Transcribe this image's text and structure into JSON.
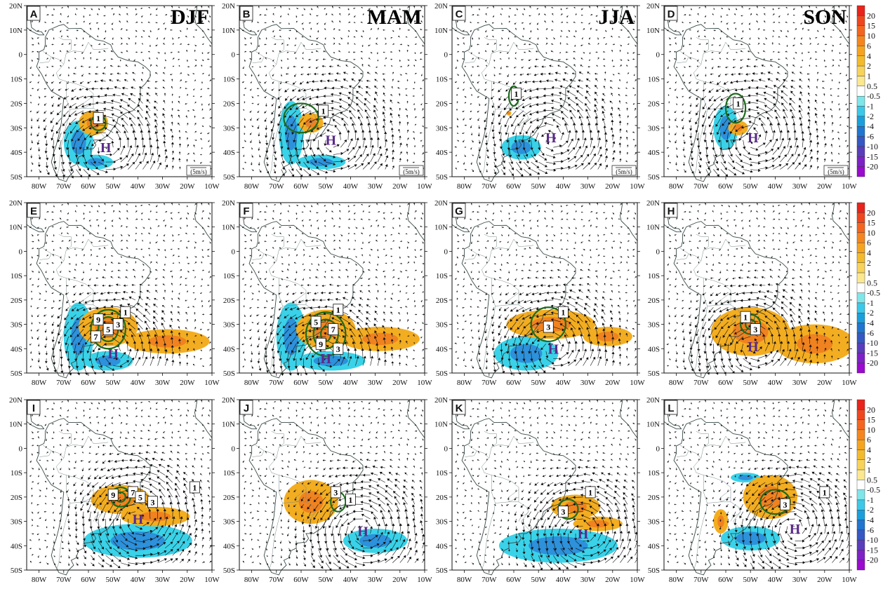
{
  "panels": [
    {
      "id": "A",
      "season": "DJF",
      "ref_vector": "(5m/s)",
      "contours": [
        {
          "text": "1",
          "lon": -56,
          "lat": -26
        }
      ],
      "highs": [
        {
          "text": "H",
          "lon": -53,
          "lat": -38
        }
      ],
      "pos_blobs": [
        {
          "lon": -58,
          "lat": -28,
          "rl": 6,
          "rt": 5
        }
      ],
      "neg_blobs": [
        {
          "lon": -64,
          "lat": -36,
          "rl": 6,
          "rt": 9
        },
        {
          "lon": -57,
          "lat": -44,
          "rl": 7,
          "rt": 3
        }
      ],
      "green": [
        {
          "lon": -56,
          "lat": -28,
          "rl": 3,
          "rt": 3
        }
      ]
    },
    {
      "id": "B",
      "season": "MAM",
      "ref_vector": "(5m/s)",
      "contours": [
        {
          "text": "1",
          "lon": -51,
          "lat": -23
        }
      ],
      "highs": [
        {
          "text": "H",
          "lon": -48,
          "lat": -35
        }
      ],
      "pos_blobs": [
        {
          "lon": -56,
          "lat": -28,
          "rl": 5,
          "rt": 4
        }
      ],
      "neg_blobs": [
        {
          "lon": -64,
          "lat": -32,
          "rl": 5,
          "rt": 13
        },
        {
          "lon": -52,
          "lat": -44,
          "rl": 10,
          "rt": 3
        }
      ],
      "green": [
        {
          "lon": -60,
          "lat": -26,
          "rl": 7,
          "rt": 6
        }
      ]
    },
    {
      "id": "C",
      "season": "JJA",
      "ref_vector": "(5m/s)",
      "contours": [
        {
          "text": "1",
          "lon": -59,
          "lat": -16
        }
      ],
      "highs": [
        {
          "text": "H",
          "lon": -45,
          "lat": -34
        }
      ],
      "pos_blobs": [
        {
          "lon": -62,
          "lat": -24,
          "rl": 1,
          "rt": 1
        }
      ],
      "neg_blobs": [
        {
          "lon": -57,
          "lat": -38,
          "rl": 8,
          "rt": 5
        }
      ],
      "green": [
        {
          "lon": -60,
          "lat": -17,
          "rl": 2,
          "rt": 4
        }
      ]
    },
    {
      "id": "D",
      "season": "SON",
      "ref_vector": "(5m/s)",
      "contours": [
        {
          "text": "1",
          "lon": -55,
          "lat": -20
        }
      ],
      "highs": [
        {
          "text": "H",
          "lon": -49,
          "lat": -34
        }
      ],
      "pos_blobs": [
        {
          "lon": -55,
          "lat": -30,
          "rl": 4,
          "rt": 3
        }
      ],
      "neg_blobs": [
        {
          "lon": -60,
          "lat": -30,
          "rl": 5,
          "rt": 9
        }
      ],
      "green": [
        {
          "lon": -56,
          "lat": -22,
          "rl": 4,
          "rt": 6
        }
      ]
    },
    {
      "id": "E",
      "season": "",
      "ref_vector": "",
      "contours": [
        {
          "text": "9",
          "lon": -56,
          "lat": -28
        },
        {
          "text": "1",
          "lon": -45,
          "lat": -25
        },
        {
          "text": "5",
          "lon": -52,
          "lat": -32
        },
        {
          "text": "3",
          "lon": -48,
          "lat": -30
        },
        {
          "text": "7",
          "lon": -57,
          "lat": -35
        }
      ],
      "highs": [
        {
          "text": "H",
          "lon": -50,
          "lat": -42
        }
      ],
      "pos_blobs": [
        {
          "lon": -52,
          "lat": -31,
          "rl": 12,
          "rt": 8
        },
        {
          "lon": -28,
          "lat": -37,
          "rl": 17,
          "rt": 5
        }
      ],
      "neg_blobs": [
        {
          "lon": -64,
          "lat": -35,
          "rl": 6,
          "rt": 14
        },
        {
          "lon": -52,
          "lat": -45,
          "rl": 10,
          "rt": 4
        }
      ],
      "green": [
        {
          "lon": -52,
          "lat": -32,
          "rl": 7,
          "rt": 8
        },
        {
          "lon": -52,
          "lat": -32,
          "rl": 4,
          "rt": 5
        },
        {
          "lon": -52,
          "lat": -32,
          "rl": 2,
          "rt": 2
        }
      ]
    },
    {
      "id": "F",
      "season": "",
      "ref_vector": "",
      "contours": [
        {
          "text": "1",
          "lon": -45,
          "lat": -24
        },
        {
          "text": "5",
          "lon": -54,
          "lat": -29
        },
        {
          "text": "7",
          "lon": -47,
          "lat": -32
        },
        {
          "text": "9",
          "lon": -52,
          "lat": -38
        },
        {
          "text": "3",
          "lon": -45,
          "lat": -40
        }
      ],
      "highs": [
        {
          "text": "H",
          "lon": -50,
          "lat": -44
        }
      ],
      "pos_blobs": [
        {
          "lon": -50,
          "lat": -32,
          "rl": 12,
          "rt": 8
        },
        {
          "lon": -28,
          "lat": -36,
          "rl": 16,
          "rt": 5
        }
      ],
      "neg_blobs": [
        {
          "lon": -64,
          "lat": -35,
          "rl": 6,
          "rt": 14
        },
        {
          "lon": -48,
          "lat": -45,
          "rl": 14,
          "rt": 4
        }
      ],
      "green": [
        {
          "lon": -50,
          "lat": -34,
          "rl": 8,
          "rt": 9
        },
        {
          "lon": -50,
          "lat": -34,
          "rl": 5,
          "rt": 6
        },
        {
          "lon": -50,
          "lat": -34,
          "rl": 2,
          "rt": 3
        }
      ]
    },
    {
      "id": "G",
      "season": "",
      "ref_vector": "",
      "contours": [
        {
          "text": "1",
          "lon": -40,
          "lat": -25
        },
        {
          "text": "3",
          "lon": -46,
          "lat": -31
        }
      ],
      "highs": [
        {
          "text": "H",
          "lon": -44,
          "lat": -40
        }
      ],
      "pos_blobs": [
        {
          "lon": -45,
          "lat": -30,
          "rl": 18,
          "rt": 6
        },
        {
          "lon": -22,
          "lat": -35,
          "rl": 10,
          "rt": 4
        }
      ],
      "neg_blobs": [
        {
          "lon": -55,
          "lat": -42,
          "rl": 13,
          "rt": 7
        }
      ],
      "green": [
        {
          "lon": -46,
          "lat": -30,
          "rl": 7,
          "rt": 7
        }
      ]
    },
    {
      "id": "H",
      "season": "",
      "ref_vector": "",
      "contours": [
        {
          "text": "1",
          "lon": -52,
          "lat": -27
        },
        {
          "text": "3",
          "lon": -48,
          "lat": -32
        }
      ],
      "highs": [
        {
          "text": "H",
          "lon": -49,
          "lat": -39
        }
      ],
      "pos_blobs": [
        {
          "lon": -50,
          "lat": -33,
          "rl": 16,
          "rt": 10
        },
        {
          "lon": -24,
          "lat": -38,
          "rl": 16,
          "rt": 8
        }
      ],
      "neg_blobs": [
        {
          "lon": -63,
          "lat": -34,
          "rl": 1,
          "rt": 2
        }
      ],
      "green": [
        {
          "lon": -50,
          "lat": -30,
          "rl": 4,
          "rt": 4
        },
        {
          "lon": -50,
          "lat": -30,
          "rl": 2,
          "rt": 2
        }
      ]
    },
    {
      "id": "I",
      "season": "",
      "ref_vector": "",
      "contours": [
        {
          "text": "9",
          "lon": -50,
          "lat": -19
        },
        {
          "text": "1",
          "lon": -17,
          "lat": -16
        },
        {
          "text": "7",
          "lon": -42,
          "lat": -18
        },
        {
          "text": "5",
          "lon": -39,
          "lat": -20
        },
        {
          "text": "3",
          "lon": -34,
          "lat": -22
        }
      ],
      "highs": [
        {
          "text": "H",
          "lon": -40,
          "lat": -29
        }
      ],
      "pos_blobs": [
        {
          "lon": -47,
          "lat": -21,
          "rl": 12,
          "rt": 6
        },
        {
          "lon": -33,
          "lat": -28,
          "rl": 14,
          "rt": 4
        }
      ],
      "neg_blobs": [
        {
          "lon": -40,
          "lat": -38,
          "rl": 22,
          "rt": 7
        }
      ],
      "green": [
        {
          "lon": -47,
          "lat": -20,
          "rl": 4,
          "rt": 4
        },
        {
          "lon": -47,
          "lat": -20,
          "rl": 2,
          "rt": 2
        }
      ]
    },
    {
      "id": "J",
      "season": "",
      "ref_vector": "",
      "contours": [
        {
          "text": "3",
          "lon": -46,
          "lat": -18
        },
        {
          "text": "1",
          "lon": -40,
          "lat": -21
        }
      ],
      "highs": [
        {
          "text": "H",
          "lon": -35,
          "lat": -34
        }
      ],
      "pos_blobs": [
        {
          "lon": -56,
          "lat": -22,
          "rl": 11,
          "rt": 9
        }
      ],
      "neg_blobs": [
        {
          "lon": -30,
          "lat": -38,
          "rl": 13,
          "rt": 5
        }
      ],
      "green": [
        {
          "lon": -45,
          "lat": -22,
          "rl": 3,
          "rt": 4
        }
      ]
    },
    {
      "id": "K",
      "season": "",
      "ref_vector": "",
      "contours": [
        {
          "text": "1",
          "lon": -29,
          "lat": -18
        },
        {
          "text": "3",
          "lon": -40,
          "lat": -26
        }
      ],
      "highs": [
        {
          "text": "H",
          "lon": -32,
          "lat": -35
        }
      ],
      "pos_blobs": [
        {
          "lon": -35,
          "lat": -24,
          "rl": 10,
          "rt": 5
        },
        {
          "lon": -26,
          "lat": -31,
          "rl": 10,
          "rt": 3
        }
      ],
      "neg_blobs": [
        {
          "lon": -42,
          "lat": -40,
          "rl": 24,
          "rt": 7
        }
      ],
      "green": [
        {
          "lon": -38,
          "lat": -25,
          "rl": 4,
          "rt": 4
        }
      ]
    },
    {
      "id": "L",
      "season": "",
      "ref_vector": "",
      "contours": [
        {
          "text": "1",
          "lon": -20,
          "lat": -18
        },
        {
          "text": "3",
          "lon": -36,
          "lat": -23
        }
      ],
      "highs": [
        {
          "text": "H",
          "lon": -32,
          "lat": -33
        }
      ],
      "pos_blobs": [
        {
          "lon": -42,
          "lat": -20,
          "rl": 11,
          "rt": 9
        },
        {
          "lon": -62,
          "lat": -30,
          "rl": 3,
          "rt": 5
        }
      ],
      "neg_blobs": [
        {
          "lon": -50,
          "lat": -37,
          "rl": 12,
          "rt": 5
        },
        {
          "lon": -52,
          "lat": -12,
          "rl": 6,
          "rt": 2
        }
      ],
      "green": [
        {
          "lon": -40,
          "lat": -22,
          "rl": 6,
          "rt": 5
        }
      ]
    }
  ],
  "lon_ticks": [
    "80W",
    "70W",
    "60W",
    "50W",
    "40W",
    "30W",
    "20W",
    "10W"
  ],
  "lat_ticks": [
    "20N",
    "10N",
    "0",
    "10S",
    "20S",
    "30S",
    "40S",
    "50S"
  ],
  "colorbar": {
    "labels": [
      "20",
      "15",
      "10",
      "6",
      "4",
      "2",
      "1",
      "0.5",
      "-0.5",
      "-1",
      "-2",
      "-4",
      "-6",
      "-10",
      "-15",
      "-20"
    ],
    "colors": [
      "#e8241c",
      "#f0461e",
      "#f4661f",
      "#f5861f",
      "#f6a41f",
      "#f3ba2b",
      "#f7d35a",
      "#fbe88f",
      "#ffffff",
      "#7fe6ea",
      "#3cc8e8",
      "#1a9fdc",
      "#2076d0",
      "#3558c4",
      "#5a3dbb",
      "#7e22c7",
      "#9a0acf"
    ]
  },
  "colors": {
    "positive": "#f3ad21",
    "positive_core": "#ef7a1e",
    "negative": "#3ad2e8",
    "negative_core": "#2c86d8",
    "contour": "#1d6b1d",
    "land": "#3a4a4a",
    "high": "#5a2a8a"
  }
}
